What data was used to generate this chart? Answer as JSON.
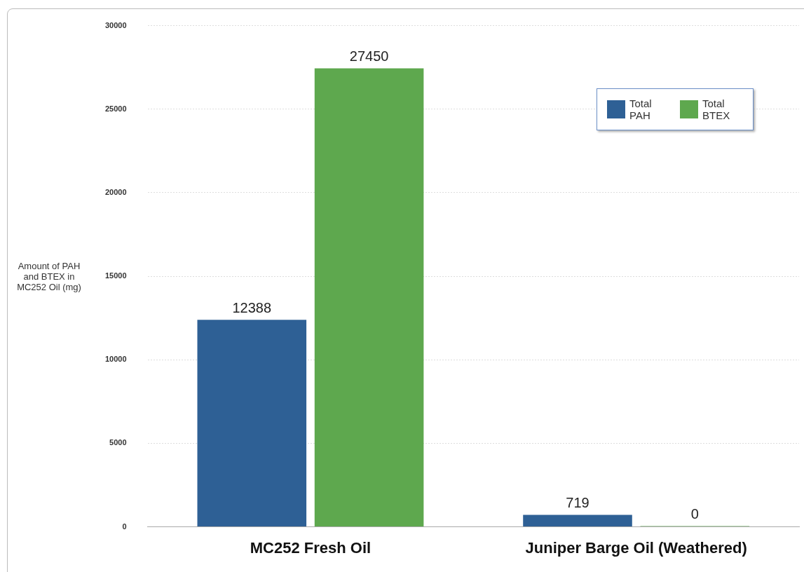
{
  "chart_data": {
    "type": "bar",
    "ylabel": "Amount of PAH and BTEX in MC252 Oil (mg)",
    "categories": [
      "MC252 Fresh Oil",
      "Juniper Barge Oil (Weathered)"
    ],
    "series": [
      {
        "name": "Total PAH",
        "color": "#2e6095",
        "values": [
          12388,
          719
        ]
      },
      {
        "name": "Total BTEX",
        "color": "#5ea84e",
        "values": [
          27450,
          0
        ]
      }
    ],
    "ylim": [
      0,
      30000
    ],
    "yticks": [
      0,
      5000,
      10000,
      15000,
      20000,
      25000,
      30000
    ],
    "grid": "y",
    "legend": "top right",
    "data_labels": true
  }
}
